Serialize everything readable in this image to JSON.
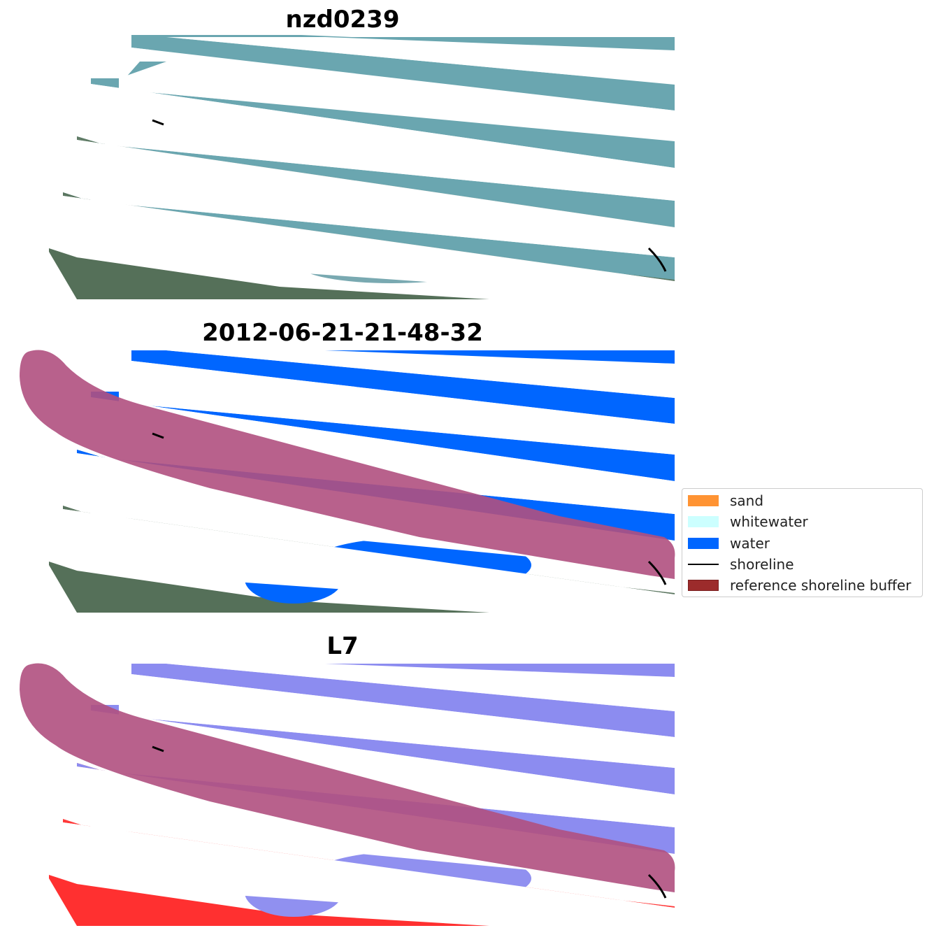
{
  "panels": [
    {
      "title": "nzd0239"
    },
    {
      "title": "2012-06-21-21-48-32"
    },
    {
      "title": "L7"
    }
  ],
  "legend": {
    "items": [
      {
        "label": "sand",
        "color": "#ff9333",
        "kind": "patch"
      },
      {
        "label": "whitewater",
        "color": "#ccffff",
        "kind": "patch"
      },
      {
        "label": "water",
        "color": "#0066ff",
        "kind": "patch"
      },
      {
        "label": "shoreline",
        "color": "#000000",
        "kind": "line"
      },
      {
        "label": "reference shoreline buffer",
        "color": "#9c2b2b",
        "kind": "patch"
      }
    ]
  },
  "colors": {
    "ocean_rgb": "#6aa6b0",
    "land_rgb": "#556f5a",
    "water_class": "#0066ff",
    "buffer": "#b0507f",
    "index_negative": "#8c8cf0",
    "index_positive": "#ff3030"
  }
}
